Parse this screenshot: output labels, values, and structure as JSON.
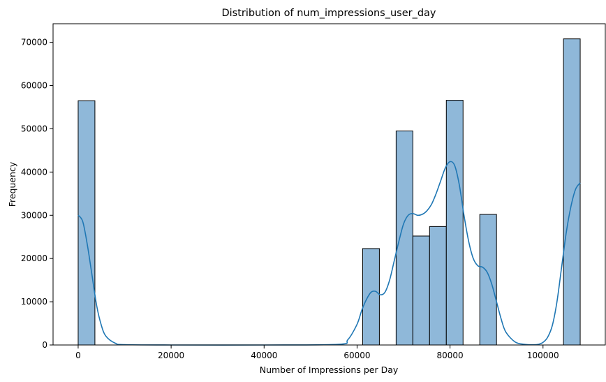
{
  "chart_data": {
    "type": "bar",
    "title": "Distribution of num_impressions_user_day",
    "xlabel": "Number of Impressions per Day",
    "ylabel": "Frequency",
    "xlim": [
      -5400,
      113400
    ],
    "ylim": [
      0,
      74300
    ],
    "xticks": [
      0,
      20000,
      40000,
      60000,
      80000,
      100000
    ],
    "yticks": [
      0,
      10000,
      20000,
      30000,
      40000,
      50000,
      60000,
      70000
    ],
    "bin_width": 3600,
    "bins": [
      {
        "start": 0,
        "count": 56500
      },
      {
        "start": 61200,
        "count": 22300
      },
      {
        "start": 68400,
        "count": 49500
      },
      {
        "start": 72000,
        "count": 25200
      },
      {
        "start": 75600,
        "count": 27400
      },
      {
        "start": 79200,
        "count": 56600
      },
      {
        "start": 86400,
        "count": 30200
      },
      {
        "start": 104400,
        "count": 70800
      }
    ],
    "kde": {
      "x": [
        0,
        1000,
        2000,
        3000,
        4000,
        5000,
        6000,
        8000,
        10000,
        20000,
        40000,
        56000,
        58000,
        60000,
        61000,
        62000,
        63000,
        64000,
        65000,
        66000,
        67000,
        68000,
        69000,
        70000,
        71000,
        72000,
        73000,
        74000,
        75000,
        76000,
        77000,
        78000,
        79000,
        80000,
        81000,
        82000,
        83000,
        84000,
        85000,
        86000,
        87000,
        88000,
        89000,
        90000,
        91000,
        92000,
        94000,
        96000,
        98000,
        99000,
        100000,
        101000,
        102000,
        103000,
        104000,
        105000,
        106000,
        107000,
        108000
      ],
      "y": [
        30000,
        28500,
        23000,
        16000,
        9000,
        4500,
        2000,
        400,
        80,
        0,
        0,
        150,
        1200,
        4800,
        8000,
        10500,
        12200,
        12400,
        11600,
        12200,
        15000,
        19500,
        24000,
        28000,
        30000,
        30400,
        30000,
        30200,
        31000,
        32500,
        35000,
        38000,
        41000,
        42400,
        41500,
        37000,
        30000,
        24000,
        20000,
        18300,
        18000,
        16800,
        14000,
        10000,
        6000,
        3000,
        700,
        150,
        50,
        150,
        600,
        1800,
        4500,
        10000,
        18000,
        26000,
        32000,
        36000,
        37500
      ],
      "color": "#1f77b4"
    },
    "bar_color": "#8fb8d9",
    "bar_edge_color": "#000000",
    "grid": false
  }
}
